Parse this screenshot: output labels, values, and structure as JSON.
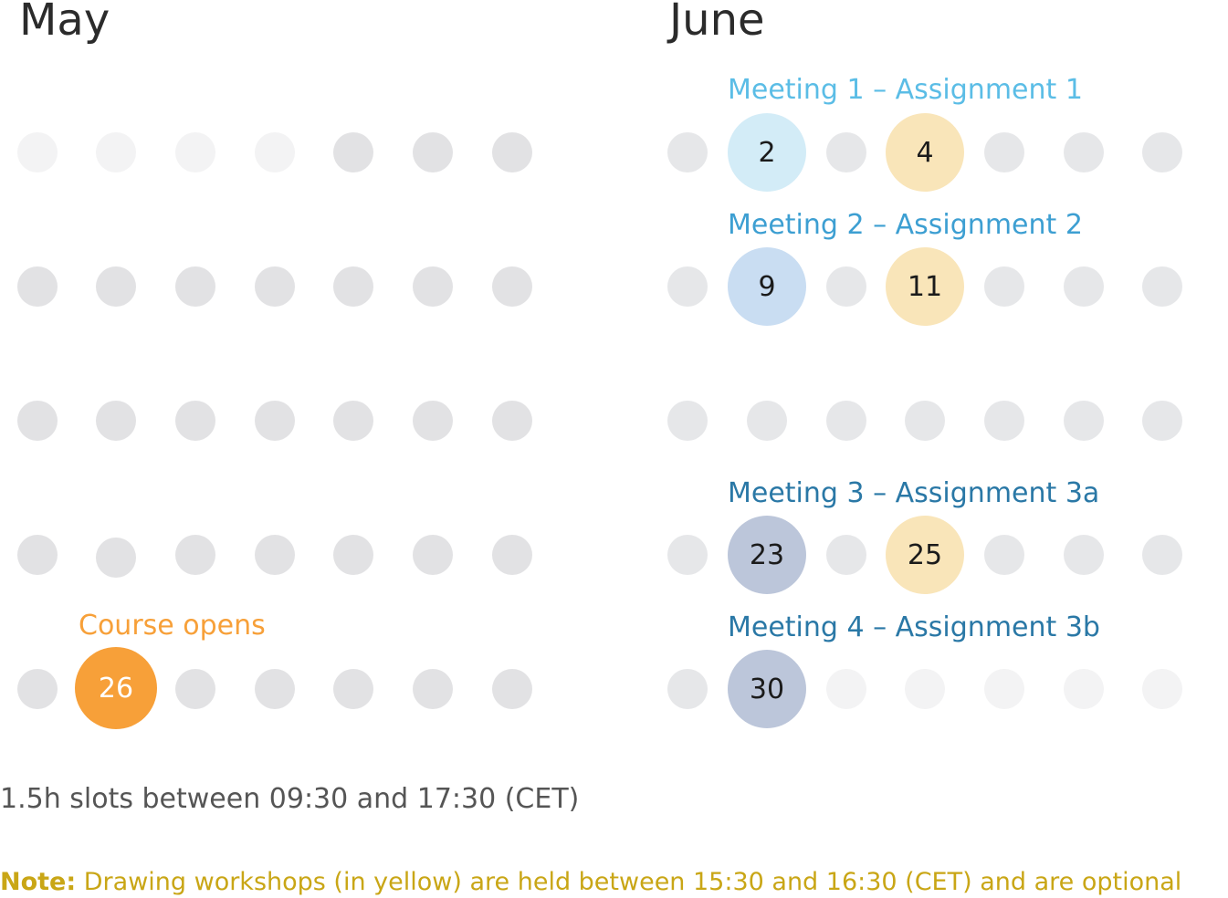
{
  "months": {
    "may": "May",
    "june": "June"
  },
  "events": {
    "course_opens": {
      "label": "Course opens",
      "day": "26",
      "color": "#f7a039"
    },
    "jun2": {
      "day": "2",
      "color": "#d3ecf7"
    },
    "jun4": {
      "day": "4",
      "color": "#f9e5b9"
    },
    "jun9": {
      "day": "9",
      "color": "#c9ddf2"
    },
    "jun11": {
      "day": "11",
      "color": "#f9e5b9"
    },
    "jun23": {
      "day": "23",
      "color": "#bcc6da"
    },
    "jun25": {
      "day": "25",
      "color": "#f9e5b9"
    },
    "jun30": {
      "day": "30",
      "color": "#bcc6da"
    }
  },
  "meetings": {
    "m1": {
      "label": "Meeting 1 – Assignment 1",
      "color": "#5bbde6"
    },
    "m2": {
      "label": "Meeting 2 – Assignment 2",
      "color": "#3d9fd2"
    },
    "m3": {
      "label": "Meeting 3 – Assignment 3a",
      "color": "#2a78a6"
    },
    "m4": {
      "label": "Meeting 4 – Assignment 3b",
      "color": "#2a78a6"
    }
  },
  "footer": {
    "slots": "1.5h slots between 09:30 and 17:30 (CET)",
    "note_label": "Note:",
    "note_text": " Drawing workshops (in yellow) are held between 15:30 and 16:30 (CET) and are optional",
    "note_color": "#c9a616"
  }
}
